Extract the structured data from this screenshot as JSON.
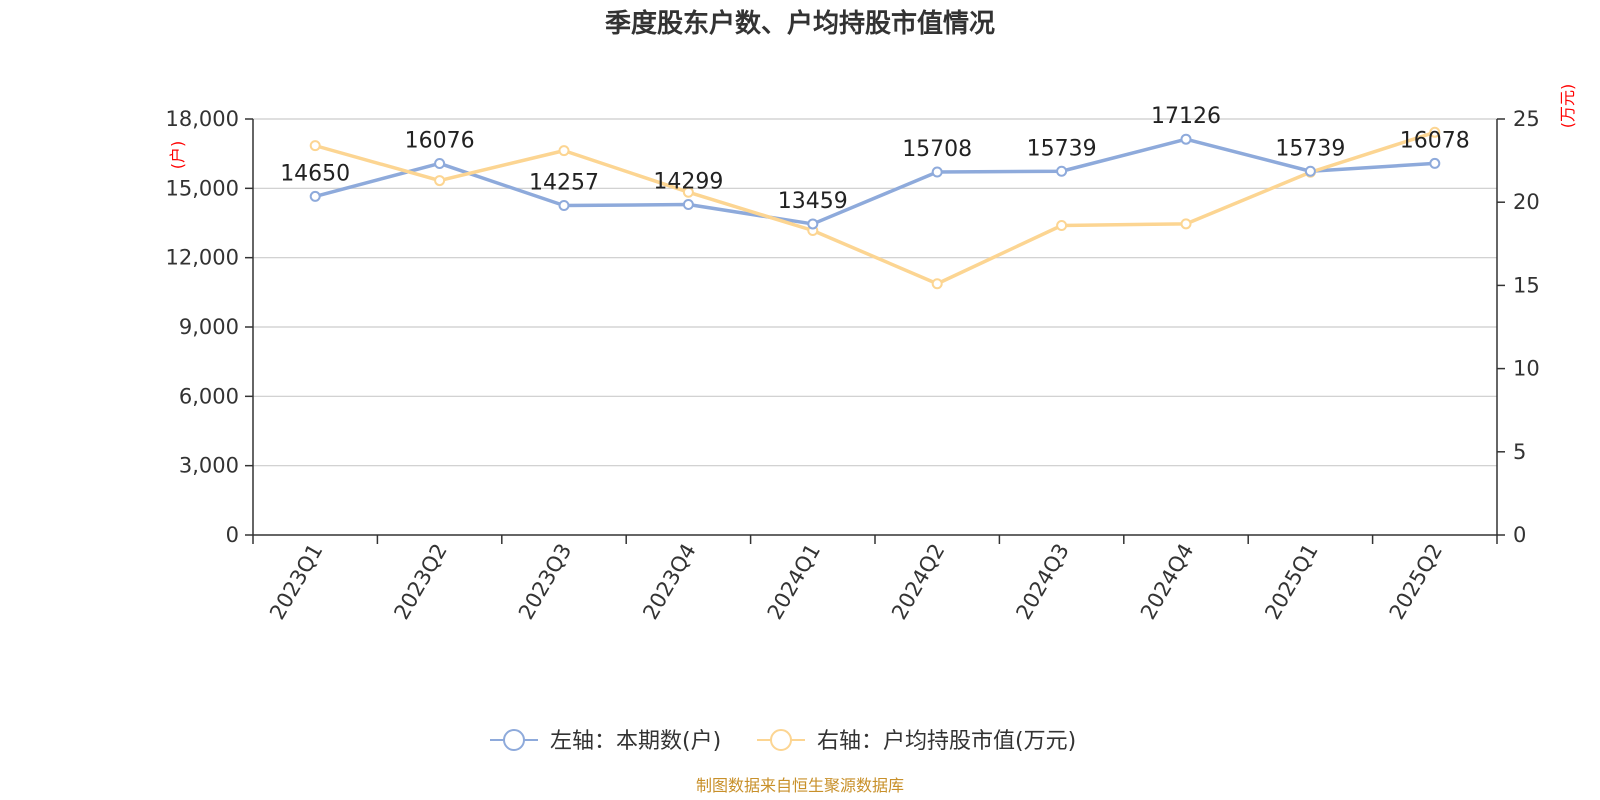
{
  "chart_data": {
    "type": "line",
    "title": "季度股东户数、户均持股市值情况",
    "categories": [
      "2023Q1",
      "2023Q2",
      "2023Q3",
      "2023Q4",
      "2024Q1",
      "2024Q2",
      "2024Q3",
      "2024Q4",
      "2025Q1",
      "2025Q2"
    ],
    "left_axis": {
      "unit": "(户)",
      "ylim": [
        0,
        18000
      ],
      "ticks": [
        "0",
        "3,000",
        "6,000",
        "9,000",
        "12,000",
        "15,000",
        "18,000"
      ]
    },
    "right_axis": {
      "unit": "(万元)",
      "ylim": [
        0,
        25
      ],
      "ticks": [
        "0",
        "5",
        "10",
        "15",
        "20",
        "25"
      ]
    },
    "series": [
      {
        "name": "左轴：本期数(户)",
        "axis": "left",
        "color": "#8eaadb",
        "values": [
          14650,
          16076,
          14257,
          14299,
          13459,
          15708,
          15739,
          17126,
          15739,
          16078
        ],
        "labels": [
          "14650",
          "16076",
          "14257",
          "14299",
          "13459",
          "15708",
          "15739",
          "17126",
          "15739",
          "16078"
        ]
      },
      {
        "name": "右轴：户均持股市值(万元)",
        "axis": "right",
        "color": "#fcd592",
        "values": [
          23.4,
          21.3,
          23.1,
          20.6,
          18.3,
          15.1,
          18.6,
          18.7,
          21.8,
          24.2
        ]
      }
    ],
    "grid": true,
    "legend": "bottom-center"
  },
  "source": "制图数据来自恒生聚源数据库"
}
